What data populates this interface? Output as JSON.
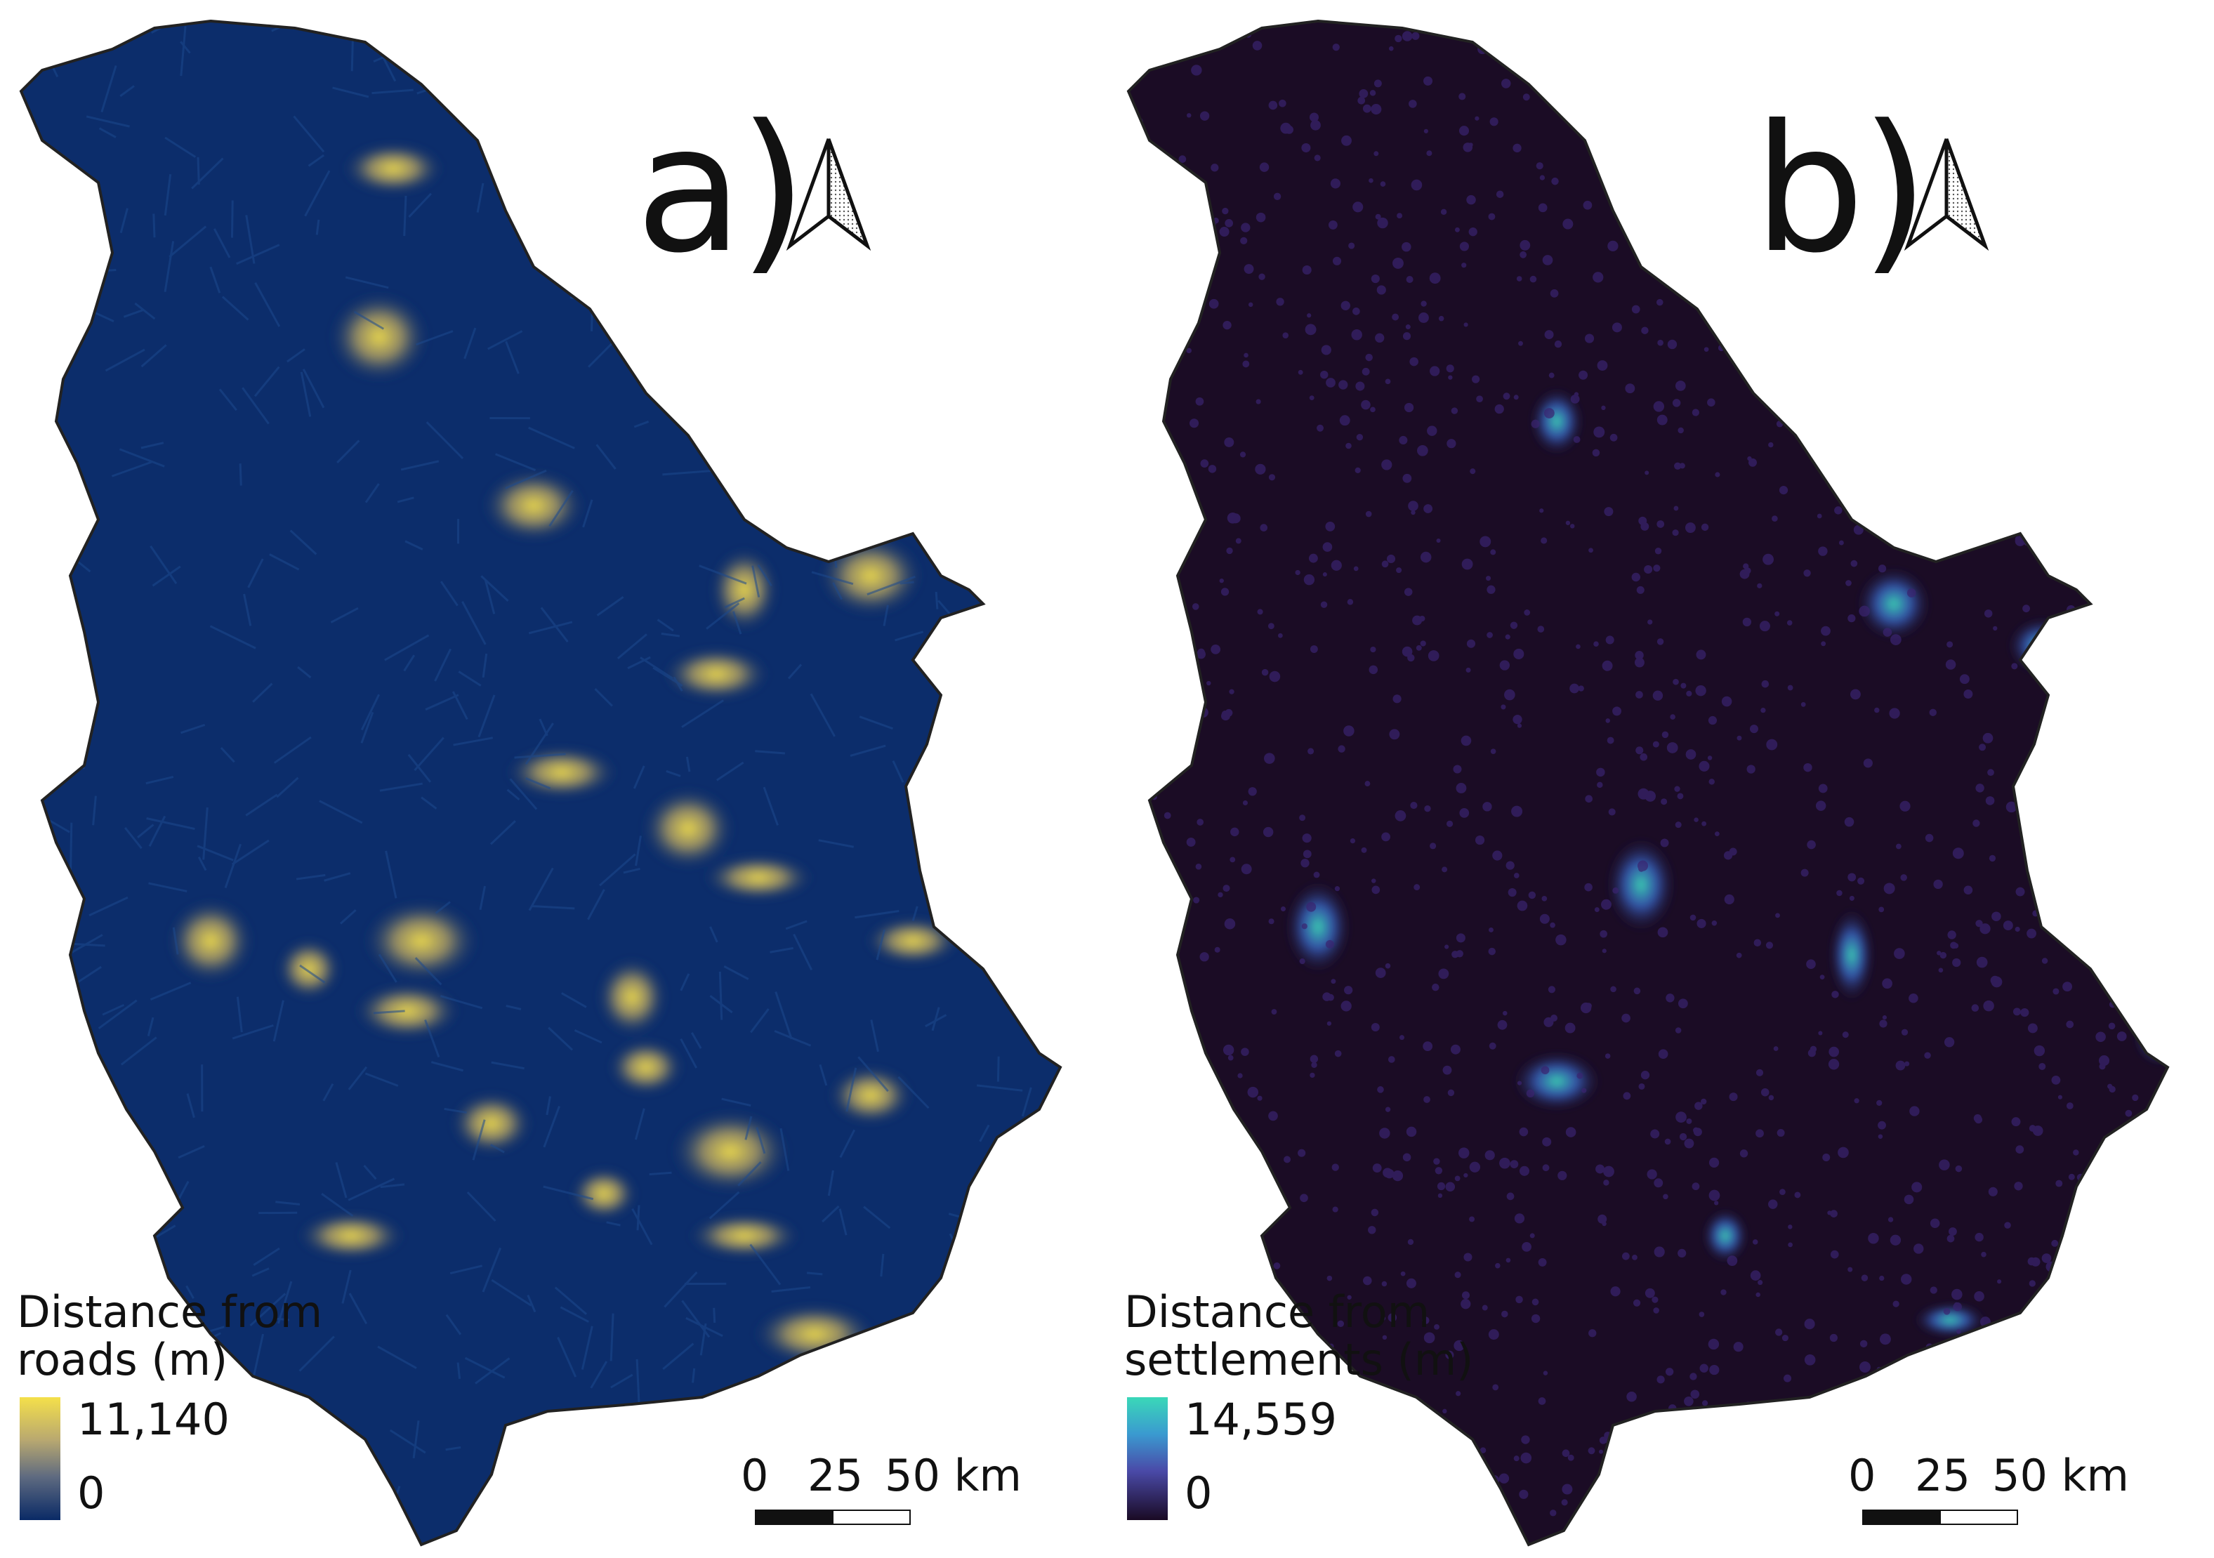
{
  "panels": [
    {
      "id": "a",
      "label": "a)",
      "legend_title_line1": "Distance from",
      "legend_title_line2": "roads (m)",
      "legend_max": "11,140",
      "legend_min": "0",
      "colors": {
        "low": "#0a2a66",
        "high": "#f5e04a"
      }
    },
    {
      "id": "b",
      "label": "b)",
      "legend_title_line1": "Distance from",
      "legend_title_line2": "settlements (m)",
      "legend_max": "14,559",
      "legend_min": "0",
      "colors": {
        "low": "#1a0a24",
        "high": "#3ad8b8"
      }
    }
  ],
  "scalebar": {
    "ticks": [
      "0",
      "25",
      "50 km"
    ]
  },
  "icons": {
    "north_arrow": "north-arrow-icon"
  },
  "colors": {
    "outline": "#222222",
    "background": "#ffffff"
  }
}
